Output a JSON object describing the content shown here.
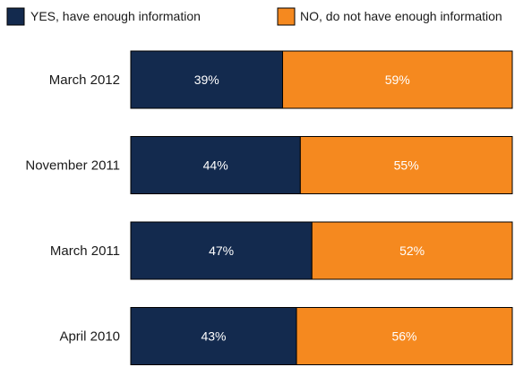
{
  "chart_data": {
    "type": "bar",
    "orientation": "horizontal",
    "stacked": true,
    "legend_position": "top",
    "categories": [
      "March 2012",
      "November 2011",
      "March 2011",
      "April 2010"
    ],
    "series": [
      {
        "name": "YES, have enough information",
        "values": [
          39,
          44,
          47,
          43
        ],
        "labels": [
          "39%",
          "44%",
          "47%",
          "43%"
        ],
        "color": "#132a4e"
      },
      {
        "name": "NO, do not have enough information",
        "values": [
          59,
          55,
          52,
          56
        ],
        "labels": [
          "59%",
          "55%",
          "52%",
          "56%"
        ],
        "color": "#f5891f"
      }
    ],
    "unit": "%"
  }
}
